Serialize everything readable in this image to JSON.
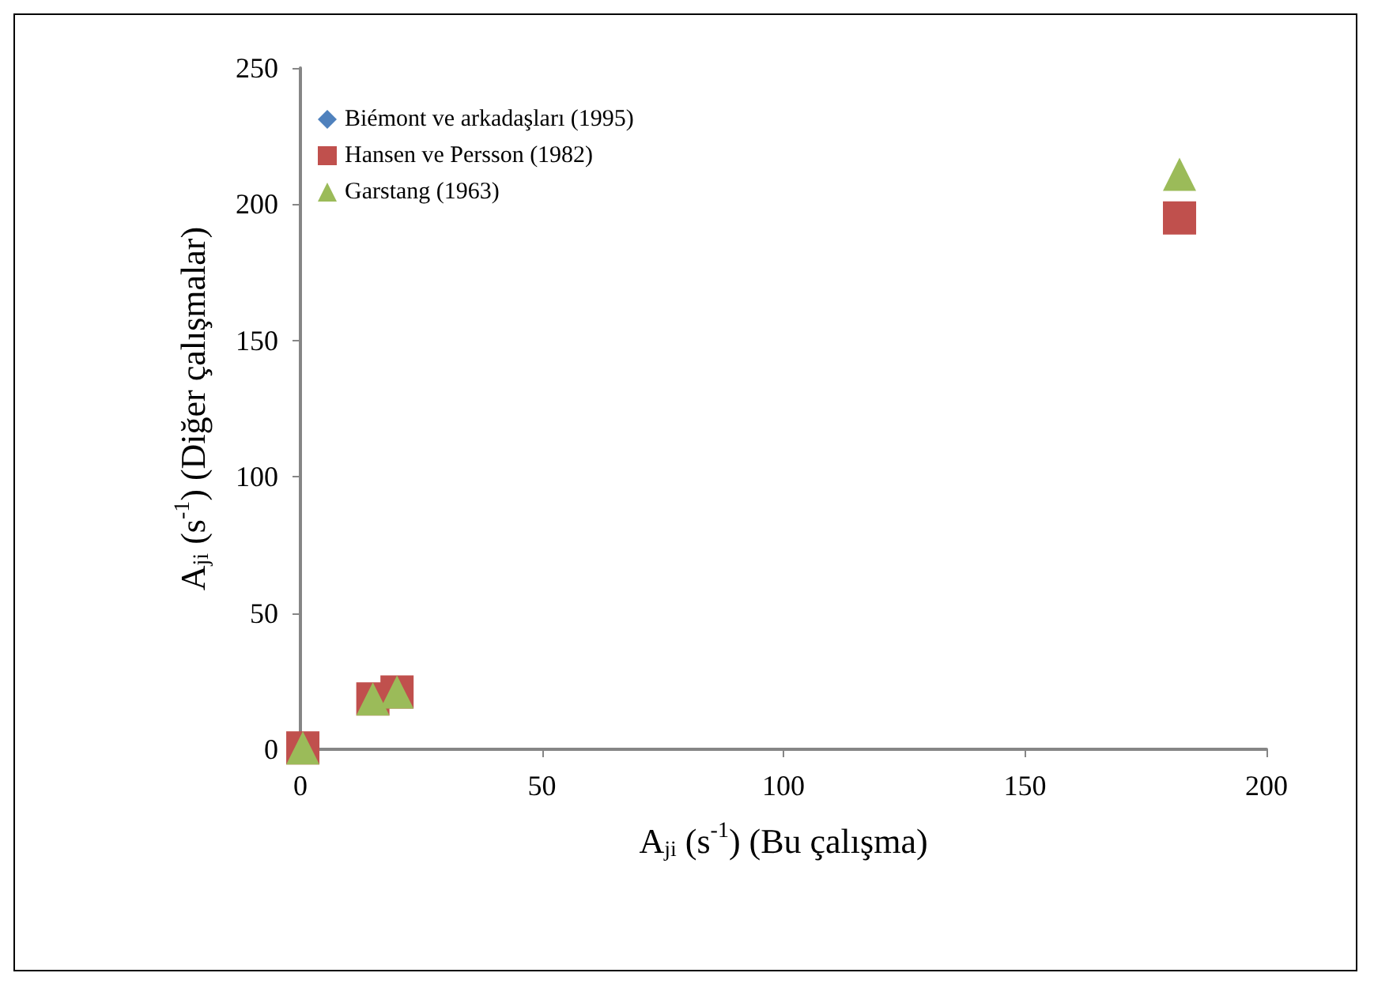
{
  "chart_data": {
    "type": "scatter",
    "xlabel": "A$_{ji}$ (s$^{-1}$) (Bu çalışma)",
    "ylabel": "A$_{ji}$ (s$^{-1}$) (Diğer çalışmalar)",
    "x": [
      0.5,
      15,
      20,
      182
    ],
    "series": [
      {
        "name": "Biémont ve arkadaşları (1995)",
        "color": "#4f81bd",
        "marker": "diamond",
        "values": [
          null,
          null,
          null,
          null
        ]
      },
      {
        "name": "Hansen ve Persson (1982)",
        "color": "#c0504d",
        "marker": "square",
        "values": [
          0.5,
          18.5,
          21,
          195
        ]
      },
      {
        "name": "Garstang (1963)",
        "color": "#9bbb59",
        "marker": "triangle",
        "values": [
          0.5,
          18.5,
          21,
          211
        ]
      }
    ],
    "xlim": [
      0,
      200
    ],
    "xticks": [
      0,
      50,
      100,
      150,
      200
    ],
    "ylim": [
      0,
      250
    ],
    "yticks": [
      0,
      50,
      100,
      150,
      200,
      250
    ],
    "grid": false,
    "legend": "top left"
  }
}
